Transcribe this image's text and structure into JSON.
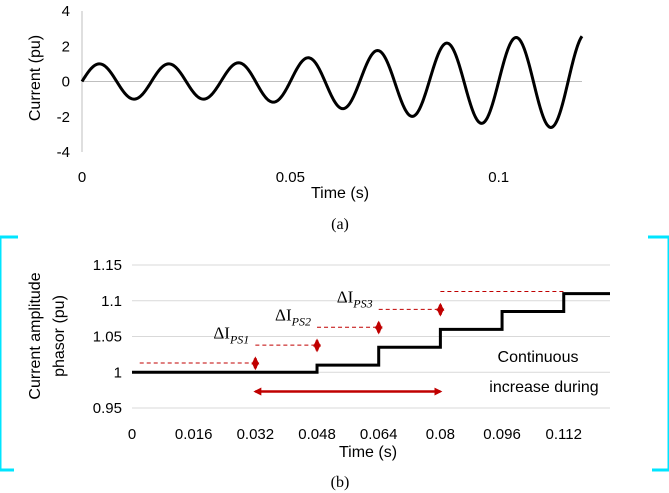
{
  "chart_data": [
    {
      "type": "line",
      "label": "(a)",
      "title": "",
      "xlabel": "Time (s)",
      "ylabel": "Current (pu)",
      "xlim": [
        0,
        0.12
      ],
      "ylim": [
        -4,
        4
      ],
      "x_ticks": [
        0,
        0.05,
        0.1
      ],
      "x_tick_labels": [
        "0",
        "0.05",
        "0.1"
      ],
      "y_ticks": [
        -4,
        -2,
        0,
        2,
        4
      ],
      "y_tick_labels": [
        "-4",
        "-2",
        "0",
        "2",
        "4"
      ],
      "grid": false,
      "series": [
        {
          "frequency_hz": 60,
          "envelope": {
            "t": [
              0,
              0.033,
              0.048,
              0.065,
              0.08,
              0.097,
              0.112,
              0.12
            ],
            "amplitude": [
              1.0,
              1.0,
              1.2,
              1.6,
              2.0,
              2.4,
              2.6,
              2.7
            ]
          }
        }
      ]
    },
    {
      "type": "line",
      "label": "(b)",
      "title": "",
      "xlabel": "Time (s)",
      "ylabel": "Current amplitude phasor (pu)",
      "ylabel_lines": [
        "Current amplitude",
        "phasor (pu)"
      ],
      "xlim": [
        0,
        0.124
      ],
      "ylim": [
        0.95,
        1.15
      ],
      "x_ticks": [
        0,
        0.016,
        0.032,
        0.048,
        0.064,
        0.08,
        0.096,
        0.112
      ],
      "x_tick_labels": [
        "0",
        "0.016",
        "0.032",
        "0.048",
        "0.064",
        "0.08",
        "0.096",
        "0.112"
      ],
      "y_ticks": [
        0.95,
        1.0,
        1.05,
        1.1,
        1.15
      ],
      "y_tick_labels": [
        "0.95",
        "1",
        "1.05",
        "1.1",
        "1.15"
      ],
      "grid": true,
      "series": [
        {
          "step": "post",
          "x": [
            0,
            0.048,
            0.064,
            0.08,
            0.096,
            0.112,
            0.124
          ],
          "y": [
            1.0,
            1.01,
            1.035,
            1.06,
            1.085,
            1.11,
            1.11
          ]
        }
      ],
      "delta_annotations": [
        {
          "label": "ΔI",
          "subscript": "PS1",
          "x": 0.032,
          "y_from": 1.0,
          "y_to": 1.025
        },
        {
          "label": "ΔI",
          "subscript": "PS2",
          "x": 0.048,
          "y_from": 1.025,
          "y_to": 1.05
        },
        {
          "label": "ΔI",
          "subscript": "PS3",
          "x": 0.064,
          "y_from": 1.05,
          "y_to": 1.075
        },
        {
          "label": "",
          "subscript": "",
          "x": 0.08,
          "y_from": 1.075,
          "y_to": 1.1
        }
      ],
      "reference_lines": [
        {
          "x_from": 0.002,
          "x_to": 0.032,
          "y": 1.013
        },
        {
          "x_from": 0.032,
          "x_to": 0.048,
          "y": 1.038
        },
        {
          "x_from": 0.048,
          "x_to": 0.064,
          "y": 1.063
        },
        {
          "x_from": 0.064,
          "x_to": 0.08,
          "y": 1.088
        },
        {
          "x_from": 0.08,
          "x_to": 0.112,
          "y": 1.113
        }
      ],
      "range_arrow": {
        "x_from": 0.032,
        "x_to": 0.08,
        "y": 0.973
      },
      "annotation_text": [
        "Continuous",
        "increase during"
      ],
      "colors": {
        "step": "#000000",
        "arrow": "#c00000",
        "reference": "#c00000",
        "frame": "#00e5ff"
      }
    }
  ]
}
